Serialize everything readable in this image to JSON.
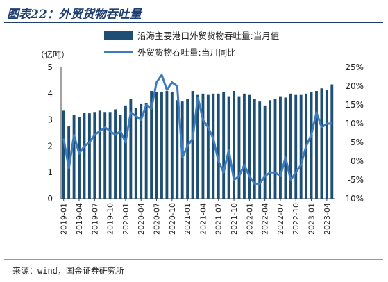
{
  "title": "图表22：外贸货物吞吐量",
  "source": "来源：wind，国金证券研究所",
  "chart_data": {
    "type": "bar+line",
    "ylabel_left": "（亿吨）",
    "ylim_left": [
      0,
      5
    ],
    "yticks_left": [
      "0",
      "1",
      "2",
      "3",
      "4",
      "5"
    ],
    "ylim_right": [
      -10,
      25
    ],
    "yticks_right": [
      "-10%",
      "-5%",
      "0%",
      "5%",
      "10%",
      "15%",
      "20%",
      "25%"
    ],
    "grid": false,
    "legend_position": "top-right",
    "x_tick_labels": [
      "2019-01",
      "2019-04",
      "2019-07",
      "2019-10",
      "2020-01",
      "2020-04",
      "2020-07",
      "2020-10",
      "2021-01",
      "2021-04",
      "2021-07",
      "2021-10",
      "2022-01",
      "2022-04",
      "2022-07",
      "2022-10",
      "2023-01",
      "2023-04"
    ],
    "categories": [
      "2019-01",
      "2019-02",
      "2019-03",
      "2019-04",
      "2019-05",
      "2019-06",
      "2019-07",
      "2019-08",
      "2019-09",
      "2019-10",
      "2019-11",
      "2019-12",
      "2020-01",
      "2020-02",
      "2020-03",
      "2020-04",
      "2020-05",
      "2020-06",
      "2020-07",
      "2020-08",
      "2020-09",
      "2020-10",
      "2020-11",
      "2020-12",
      "2021-01",
      "2021-02",
      "2021-03",
      "2021-04",
      "2021-05",
      "2021-06",
      "2021-07",
      "2021-08",
      "2021-09",
      "2021-10",
      "2021-11",
      "2021-12",
      "2022-01",
      "2022-02",
      "2022-03",
      "2022-04",
      "2022-05",
      "2022-06",
      "2022-07",
      "2022-08",
      "2022-09",
      "2022-10",
      "2022-11",
      "2022-12",
      "2023-01",
      "2023-02",
      "2023-03",
      "2023-04",
      "2023-05"
    ],
    "series": [
      {
        "name": "沿海主要港口外贸货物吞吐量:当月值",
        "type": "bar",
        "axis": "left",
        "color": "#1c4f73",
        "values": [
          3.35,
          2.75,
          3.2,
          3.1,
          3.28,
          3.25,
          3.3,
          3.35,
          3.3,
          3.3,
          3.4,
          3.2,
          3.55,
          3.8,
          3.45,
          3.6,
          3.65,
          4.1,
          4.05,
          4.05,
          4.1,
          4.05,
          3.75,
          3.7,
          3.8,
          4.1,
          3.95,
          4.0,
          3.95,
          4.0,
          4.0,
          4.05,
          3.9,
          4.1,
          3.9,
          4.0,
          3.95,
          3.8,
          3.7,
          3.55,
          3.75,
          3.8,
          3.9,
          3.85,
          4.0,
          3.95,
          3.95,
          4.0,
          4.05,
          4.1,
          4.2,
          4.15,
          4.35
        ]
      },
      {
        "name": "外贸货物吞吐量:当月同比",
        "type": "line",
        "axis": "right",
        "color": "#3e7bbd",
        "values": [
          6,
          -2,
          7,
          2,
          4,
          5,
          7,
          8,
          9,
          8,
          7,
          8,
          5,
          13,
          12,
          11,
          15,
          14,
          21,
          23,
          19,
          21,
          20,
          1,
          4,
          6,
          17,
          11,
          9,
          6,
          0,
          -3,
          3,
          -5,
          -4,
          -1,
          -4,
          -6,
          -6,
          -4,
          -3,
          -3,
          -4,
          1,
          -5,
          -3,
          -1,
          4,
          7,
          13,
          9,
          10,
          10
        ]
      }
    ]
  }
}
